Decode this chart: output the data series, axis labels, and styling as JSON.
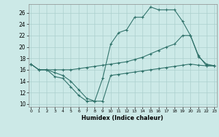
{
  "xlabel": "Humidex (Indice chaleur)",
  "x_ticks": [
    0,
    1,
    2,
    3,
    4,
    5,
    6,
    7,
    8,
    9,
    10,
    11,
    12,
    13,
    14,
    15,
    16,
    17,
    18,
    19,
    20,
    21,
    22,
    23
  ],
  "y_ticks": [
    10,
    12,
    14,
    16,
    18,
    20,
    22,
    24,
    26
  ],
  "xlim": [
    -0.3,
    23.3
  ],
  "ylim": [
    9.5,
    27.5
  ],
  "bg_color": "#cce9e7",
  "line_color": "#2d7068",
  "grid_color": "#aacfcc",
  "series": {
    "line_bottom": {
      "x": [
        0,
        1,
        2,
        3,
        4,
        5,
        6,
        7,
        8,
        9,
        10,
        11,
        12,
        13,
        14,
        15,
        16,
        17,
        18,
        19,
        20,
        21,
        22,
        23
      ],
      "y": [
        17,
        16,
        16,
        14.8,
        14.5,
        13.0,
        11.5,
        10.5,
        10.5,
        10.5,
        15.0,
        15.2,
        15.4,
        15.6,
        15.8,
        16.0,
        16.2,
        16.4,
        16.6,
        16.8,
        17.0,
        16.8,
        16.7,
        16.7
      ]
    },
    "line_top": {
      "x": [
        0,
        1,
        2,
        3,
        4,
        5,
        6,
        7,
        8,
        9,
        10,
        11,
        12,
        13,
        14,
        15,
        16,
        17,
        18,
        19,
        20,
        21,
        22,
        23
      ],
      "y": [
        17,
        16,
        16,
        15.5,
        15.0,
        14.0,
        12.5,
        11.0,
        10.5,
        14.5,
        20.5,
        22.5,
        23.0,
        25.2,
        25.2,
        27.0,
        26.5,
        26.5,
        26.5,
        24.5,
        22.0,
        18.3,
        17.0,
        16.7
      ]
    },
    "line_mid": {
      "x": [
        0,
        1,
        2,
        3,
        4,
        5,
        6,
        7,
        8,
        9,
        10,
        11,
        12,
        13,
        14,
        15,
        16,
        17,
        18,
        19,
        20,
        21,
        22,
        23
      ],
      "y": [
        17,
        16,
        16,
        16,
        16,
        16,
        16.2,
        16.4,
        16.6,
        16.8,
        17.0,
        17.2,
        17.4,
        17.8,
        18.2,
        18.8,
        19.4,
        20.0,
        20.5,
        22.0,
        22.0,
        18.5,
        16.7,
        16.7
      ]
    }
  }
}
